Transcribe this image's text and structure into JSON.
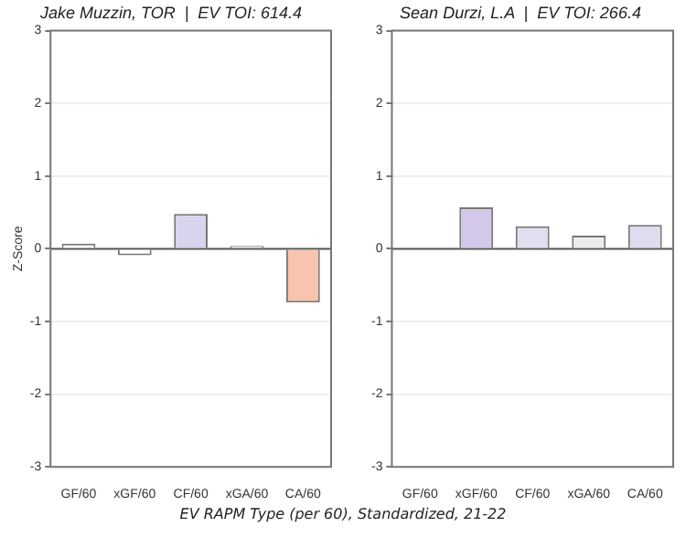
{
  "chart_data": [
    {
      "type": "bar",
      "title": "Jake Muzzin, TOR  |  EV TOI: 614.4",
      "ylabel": "Z-Score",
      "xlabel": "EV RAPM Type (per 60), Standardized, 21-22",
      "categories": [
        "GF/60",
        "xGF/60",
        "CF/60",
        "xGA/60",
        "CA/60"
      ],
      "values": [
        0.07,
        -0.09,
        0.48,
        0.04,
        -0.74
      ],
      "colors": [
        "#ffffff",
        "#ffffff",
        "#d9d3ee",
        "#ebebeb",
        "#f9c4ad"
      ],
      "ylim": [
        -3,
        3
      ],
      "yticks": [
        -3,
        -2,
        -1,
        0,
        1,
        2,
        3
      ],
      "grid": "y",
      "ref_lines": [
        {
          "axis": "y",
          "value": 0,
          "color": "#555555"
        }
      ]
    },
    {
      "type": "bar",
      "title": "Sean Durzi, L.A  |  EV TOI: 266.4",
      "categories": [
        "GF/60",
        "xGF/60",
        "CF/60",
        "xGA/60",
        "CA/60"
      ],
      "values": [
        0.01,
        0.57,
        0.31,
        0.18,
        0.33
      ],
      "colors": [
        "#f0f0f0",
        "#d4c8ea",
        "#e2def0",
        "#ececec",
        "#e0dcef"
      ],
      "ylim": [
        -3,
        3
      ],
      "yticks": [
        -3,
        -2,
        -1,
        0,
        1,
        2,
        3
      ],
      "grid": "y",
      "ref_lines": [
        {
          "axis": "y",
          "value": 0,
          "color": "#555555"
        }
      ]
    }
  ]
}
